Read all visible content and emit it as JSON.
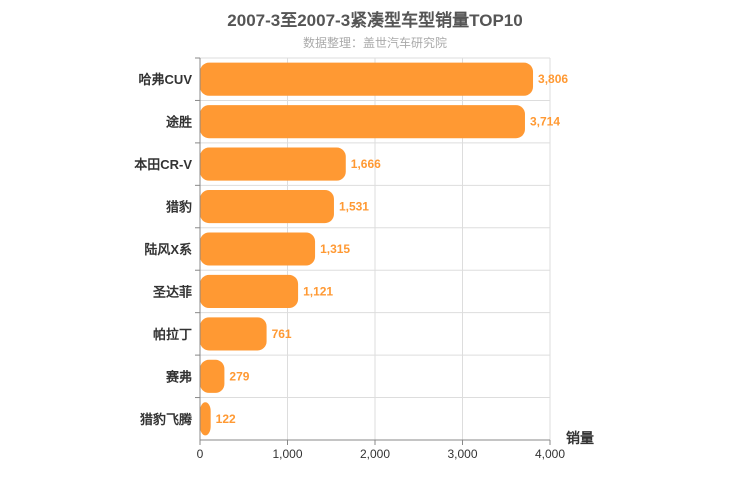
{
  "chart_data": {
    "type": "bar",
    "orientation": "horizontal",
    "title": "2007-3至2007-3紧凑型车型销量TOP10",
    "subtitle": "数据整理：盖世汽车研究院",
    "categories": [
      "哈弗CUV",
      "途胜",
      "本田CR-V",
      "猎豹",
      "陆风X系",
      "圣达菲",
      "帕拉丁",
      "赛弗",
      "猎豹飞腾"
    ],
    "values": [
      3806,
      3714,
      1666,
      1531,
      1315,
      1121,
      761,
      279,
      122
    ],
    "value_labels": [
      "3,806",
      "3,714",
      "1,666",
      "1,531",
      "1,315",
      "1,121",
      "761",
      "279",
      "122"
    ],
    "xlabel": "销量",
    "ylabel": "",
    "xlim": [
      0,
      4000
    ],
    "xticks": [
      0,
      1000,
      2000,
      3000,
      4000
    ],
    "xtick_labels": [
      "0",
      "1,000",
      "2,000",
      "3,000",
      "4,000"
    ],
    "grid": true,
    "legend": "none",
    "bar_color": "#ff9933",
    "label_color": "#ff9933"
  }
}
